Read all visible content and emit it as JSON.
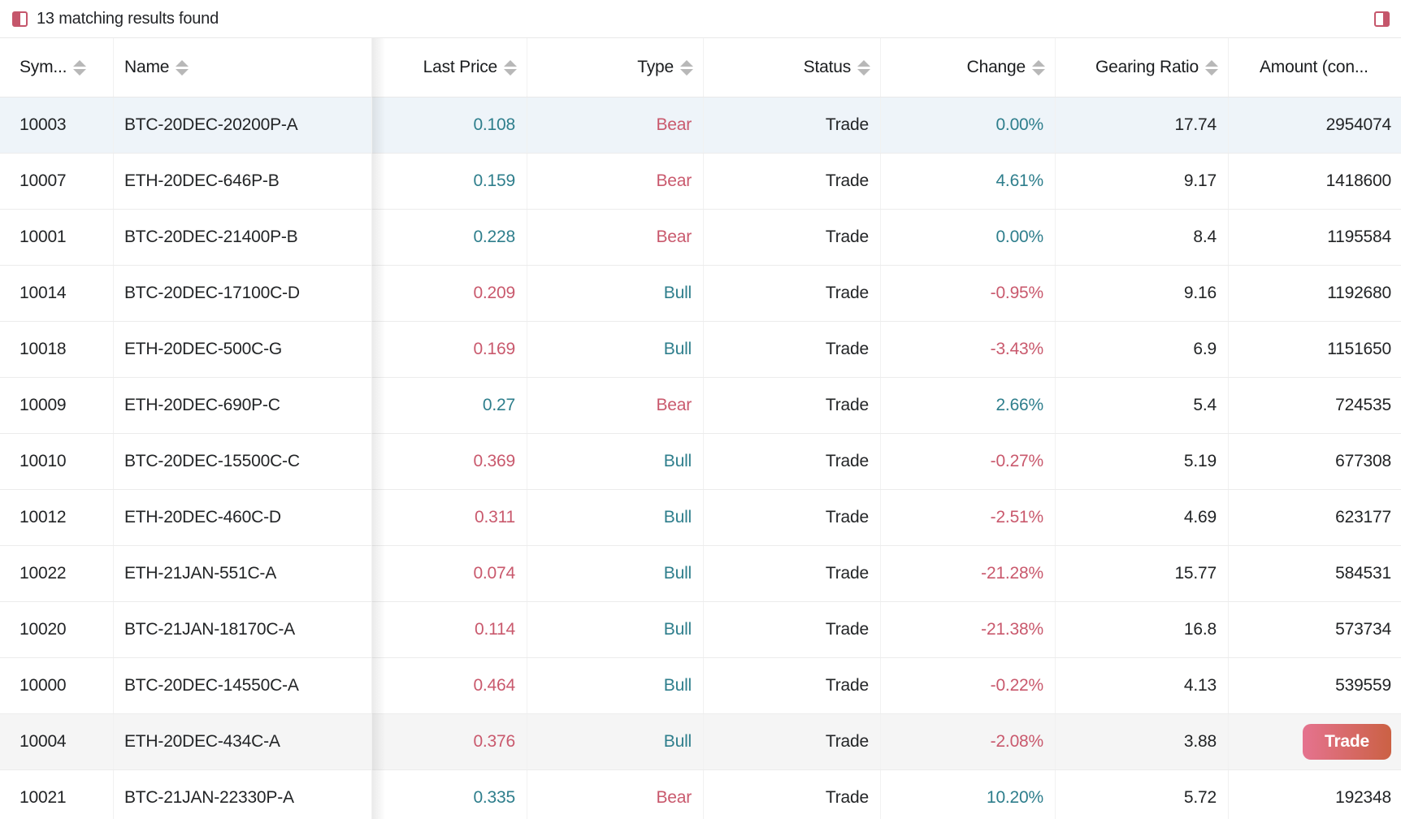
{
  "toolbar": {
    "results_text": "13 matching results found",
    "left_icon": "panel-left-icon",
    "right_icon": "panel-right-icon"
  },
  "colors": {
    "up_teal": "#2e7e8c",
    "down_red": "#c9596d",
    "accent_icon": "#c5566b",
    "selected_row": "#eef4f9",
    "hover_row": "#f5f5f5",
    "trade_gradient_start": "#e5738f",
    "trade_gradient_end": "#cb6144"
  },
  "table": {
    "columns": [
      {
        "label": "Sym...",
        "align": "left",
        "sortable": true
      },
      {
        "label": "Name",
        "align": "left",
        "sortable": true
      },
      {
        "label": "Last Price",
        "align": "right",
        "sortable": true
      },
      {
        "label": "Type",
        "align": "right",
        "sortable": true
      },
      {
        "label": "Status",
        "align": "right",
        "sortable": true
      },
      {
        "label": "Change",
        "align": "right",
        "sortable": true
      },
      {
        "label": "Gearing Ratio",
        "align": "right",
        "sortable": true
      },
      {
        "label": "Amount (con...",
        "align": "left",
        "sortable": false
      }
    ],
    "rows": [
      {
        "sym": "10003",
        "name": "BTC-20DEC-20200P-A",
        "last_price": "0.108",
        "price_dir": "up",
        "type": "Bear",
        "status": "Trade",
        "change": "0.00%",
        "change_dir": "up",
        "gearing": "17.74",
        "amount": "2954074",
        "action": null,
        "state": "selected"
      },
      {
        "sym": "10007",
        "name": "ETH-20DEC-646P-B",
        "last_price": "0.159",
        "price_dir": "up",
        "type": "Bear",
        "status": "Trade",
        "change": "4.61%",
        "change_dir": "up",
        "gearing": "9.17",
        "amount": "1418600",
        "action": null,
        "state": ""
      },
      {
        "sym": "10001",
        "name": "BTC-20DEC-21400P-B",
        "last_price": "0.228",
        "price_dir": "up",
        "type": "Bear",
        "status": "Trade",
        "change": "0.00%",
        "change_dir": "up",
        "gearing": "8.4",
        "amount": "1195584",
        "action": null,
        "state": ""
      },
      {
        "sym": "10014",
        "name": "BTC-20DEC-17100C-D",
        "last_price": "0.209",
        "price_dir": "down",
        "type": "Bull",
        "status": "Trade",
        "change": "-0.95%",
        "change_dir": "down",
        "gearing": "9.16",
        "amount": "1192680",
        "action": null,
        "state": ""
      },
      {
        "sym": "10018",
        "name": "ETH-20DEC-500C-G",
        "last_price": "0.169",
        "price_dir": "down",
        "type": "Bull",
        "status": "Trade",
        "change": "-3.43%",
        "change_dir": "down",
        "gearing": "6.9",
        "amount": "1151650",
        "action": null,
        "state": ""
      },
      {
        "sym": "10009",
        "name": "ETH-20DEC-690P-C",
        "last_price": "0.27",
        "price_dir": "up",
        "type": "Bear",
        "status": "Trade",
        "change": "2.66%",
        "change_dir": "up",
        "gearing": "5.4",
        "amount": "724535",
        "action": null,
        "state": ""
      },
      {
        "sym": "10010",
        "name": "BTC-20DEC-15500C-C",
        "last_price": "0.369",
        "price_dir": "down",
        "type": "Bull",
        "status": "Trade",
        "change": "-0.27%",
        "change_dir": "down",
        "gearing": "5.19",
        "amount": "677308",
        "action": null,
        "state": ""
      },
      {
        "sym": "10012",
        "name": "ETH-20DEC-460C-D",
        "last_price": "0.311",
        "price_dir": "down",
        "type": "Bull",
        "status": "Trade",
        "change": "-2.51%",
        "change_dir": "down",
        "gearing": "4.69",
        "amount": "623177",
        "action": null,
        "state": ""
      },
      {
        "sym": "10022",
        "name": "ETH-21JAN-551C-A",
        "last_price": "0.074",
        "price_dir": "down",
        "type": "Bull",
        "status": "Trade",
        "change": "-21.28%",
        "change_dir": "down",
        "gearing": "15.77",
        "amount": "584531",
        "action": null,
        "state": ""
      },
      {
        "sym": "10020",
        "name": "BTC-21JAN-18170C-A",
        "last_price": "0.114",
        "price_dir": "down",
        "type": "Bull",
        "status": "Trade",
        "change": "-21.38%",
        "change_dir": "down",
        "gearing": "16.8",
        "amount": "573734",
        "action": null,
        "state": ""
      },
      {
        "sym": "10000",
        "name": "BTC-20DEC-14550C-A",
        "last_price": "0.464",
        "price_dir": "down",
        "type": "Bull",
        "status": "Trade",
        "change": "-0.22%",
        "change_dir": "down",
        "gearing": "4.13",
        "amount": "539559",
        "action": null,
        "state": ""
      },
      {
        "sym": "10004",
        "name": "ETH-20DEC-434C-A",
        "last_price": "0.376",
        "price_dir": "down",
        "type": "Bull",
        "status": "Trade",
        "change": "-2.08%",
        "change_dir": "down",
        "gearing": "3.88",
        "amount": null,
        "action": "Trade",
        "state": "hover"
      },
      {
        "sym": "10021",
        "name": "BTC-21JAN-22330P-A",
        "last_price": "0.335",
        "price_dir": "up",
        "type": "Bear",
        "status": "Trade",
        "change": "10.20%",
        "change_dir": "up",
        "gearing": "5.72",
        "amount": "192348",
        "action": null,
        "state": ""
      }
    ]
  }
}
